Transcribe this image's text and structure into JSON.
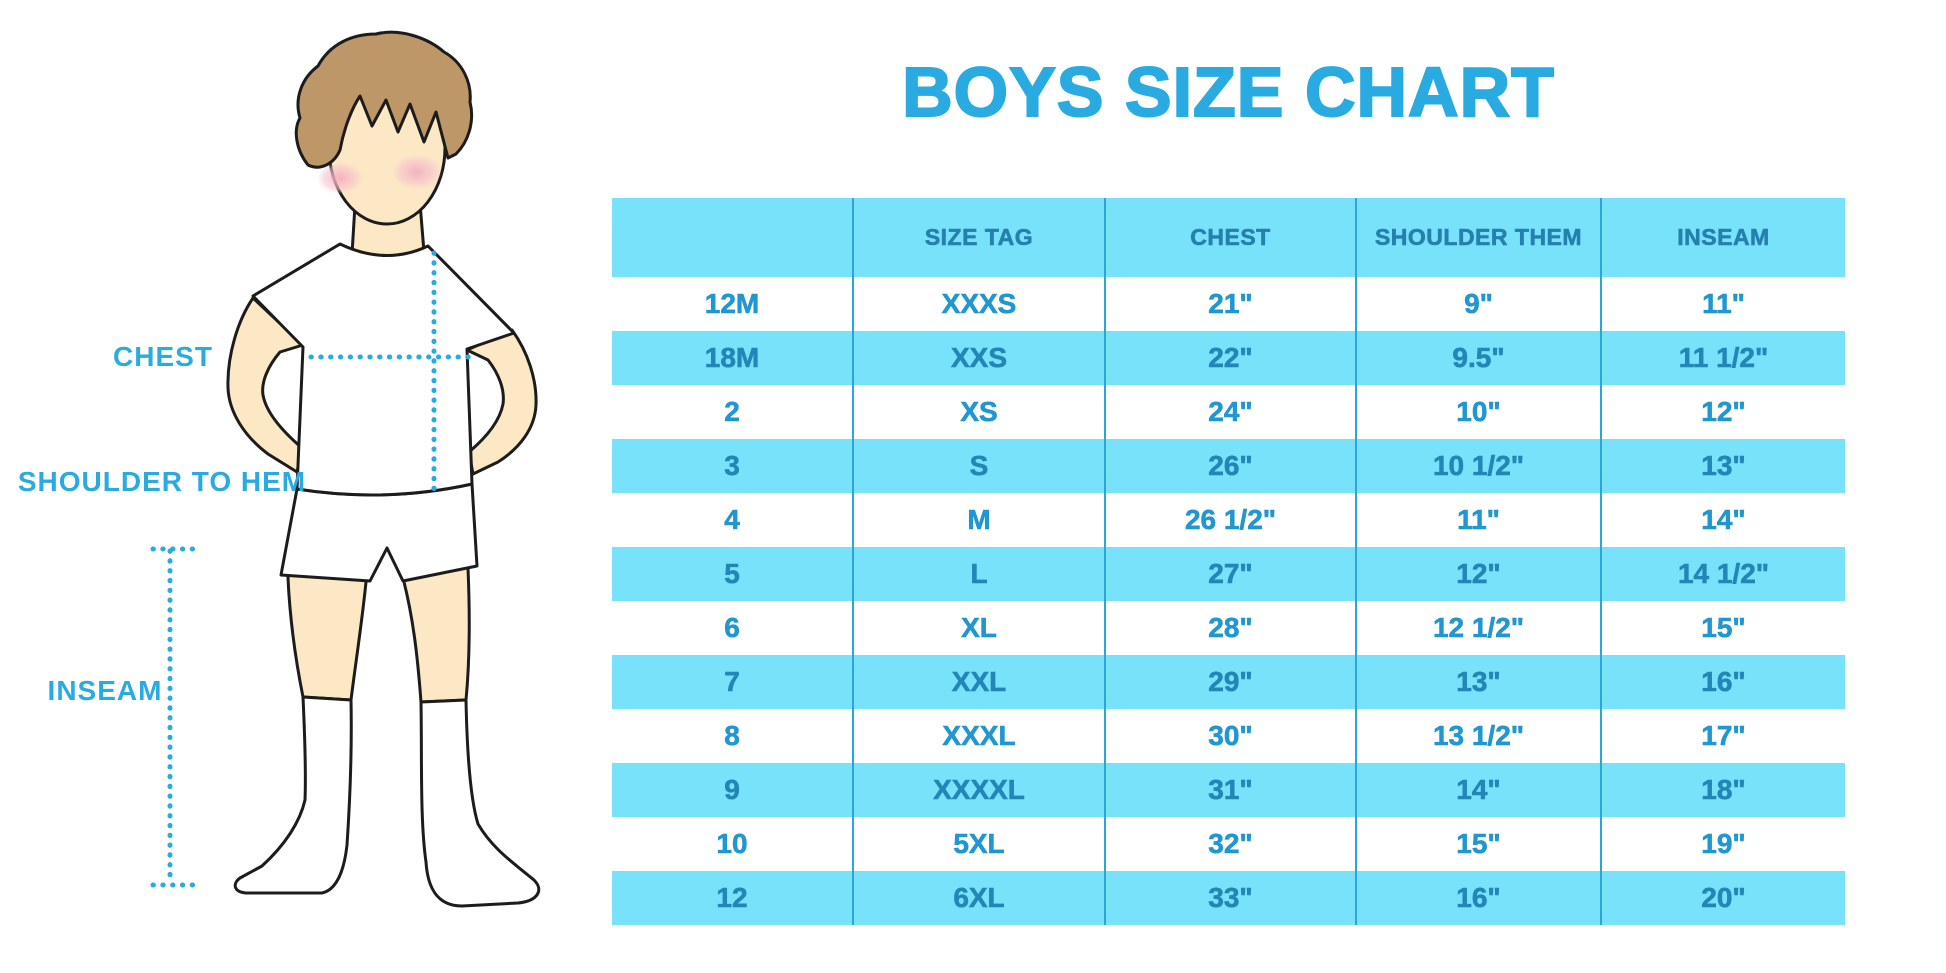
{
  "title": "BOYS SIZE CHART",
  "figure": {
    "labels": {
      "chest": "CHEST",
      "shoulder_to_hem": "SHOULDER TO HEM",
      "inseam": "INSEAM"
    }
  },
  "chart_data": {
    "type": "table",
    "title": "BOYS SIZE CHART",
    "columns": [
      "",
      "SIZE TAG",
      "CHEST",
      "SHOULDER THEM",
      "INSEAM"
    ],
    "rows": [
      [
        "12M",
        "XXXS",
        "21\"",
        "9\"",
        "11\""
      ],
      [
        "18M",
        "XXS",
        "22\"",
        "9.5\"",
        "11 1/2\""
      ],
      [
        "2",
        "XS",
        "24\"",
        "10\"",
        "12\""
      ],
      [
        "3",
        "S",
        "26\"",
        "10 1/2\"",
        "13\""
      ],
      [
        "4",
        "M",
        "26 1/2\"",
        "11\"",
        "14\""
      ],
      [
        "5",
        "L",
        "27\"",
        "12\"",
        "14 1/2\""
      ],
      [
        "6",
        "XL",
        "28\"",
        "12 1/2\"",
        "15\""
      ],
      [
        "7",
        "XXL",
        "29\"",
        "13\"",
        "16\""
      ],
      [
        "8",
        "XXXL",
        "30\"",
        "13 1/2\"",
        "17\""
      ],
      [
        "9",
        "XXXXL",
        "31\"",
        "14\"",
        "18\""
      ],
      [
        "10",
        "5XL",
        "32\"",
        "15\"",
        "19\""
      ],
      [
        "12",
        "6XL",
        "33\"",
        "16\"",
        "20\""
      ]
    ],
    "striped_rows": [
      "18M",
      "3",
      "5",
      "7",
      "9",
      "12"
    ],
    "grid": "vertical-separators-only",
    "legend_position": "none"
  },
  "colors": {
    "accent_blue": "#29abe2",
    "stripe_background": "#78e2fb",
    "column_separator": "#2aa7d8",
    "header_text": "#2580ae",
    "row_text": "#2097d1",
    "row_text_on_stripe": "#2286b6",
    "skin": "#fce8c4",
    "hair": "#bd9767",
    "cheek": "#f2aebe",
    "outline": "#1c1c1c"
  }
}
